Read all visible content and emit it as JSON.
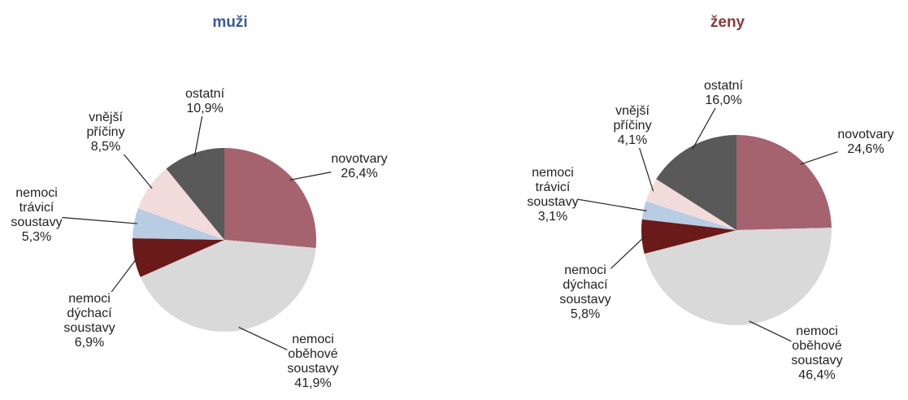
{
  "chart_data": [
    {
      "type": "pie",
      "title": "muži",
      "categories": [
        "novotvary",
        "nemoci oběhové soustavy",
        "nemoci dýchací soustavy",
        "nemoci trávicí soustavy",
        "vnější příčiny",
        "ostatní"
      ],
      "values": [
        26.4,
        41.9,
        6.9,
        5.3,
        8.5,
        10.9
      ],
      "value_labels": [
        "26,4%",
        "41,9%",
        "6,9%",
        "5,3%",
        "8,5%",
        "10,9%"
      ],
      "colors": [
        "#a5636f",
        "#d9d9d9",
        "#6b1a1a",
        "#b8cce4",
        "#f2dcdb",
        "#595959"
      ],
      "title_color": "#3a5a9a"
    },
    {
      "type": "pie",
      "title": "ženy",
      "categories": [
        "novotvary",
        "nemoci oběhové soustavy",
        "nemoci dýchací soustavy",
        "nemoci trávicí soustavy",
        "vnější příčiny",
        "ostatní"
      ],
      "values": [
        24.6,
        46.4,
        5.8,
        3.1,
        4.1,
        16.0
      ],
      "value_labels": [
        "24,6%",
        "46,4%",
        "5,8%",
        "3,1%",
        "4,1%",
        "16,0%"
      ],
      "colors": [
        "#a5636f",
        "#d9d9d9",
        "#6b1a1a",
        "#b8cce4",
        "#f2dcdb",
        "#595959"
      ],
      "title_color": "#8b3a3a"
    }
  ]
}
